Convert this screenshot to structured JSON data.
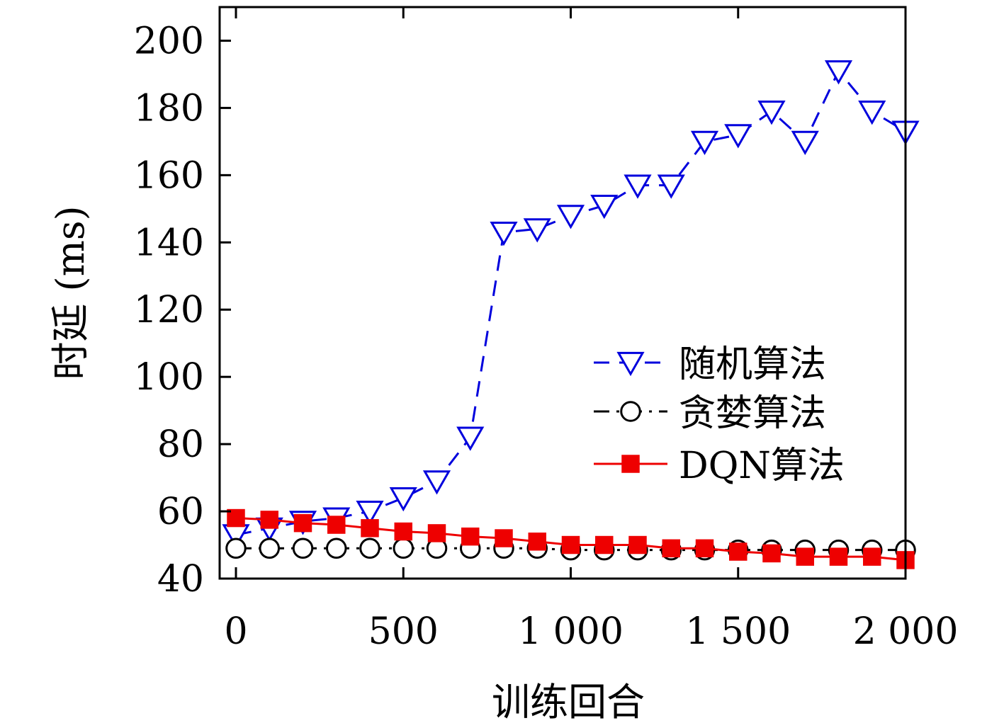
{
  "chart_data": {
    "type": "line",
    "xlabel": "训练回合",
    "ylabel": "时延 (ms)",
    "xlim": [
      -100,
      2000
    ],
    "ylim": [
      40,
      210
    ],
    "xticks": [
      0,
      500,
      1000,
      1500,
      2000
    ],
    "xtick_labels": [
      "0",
      "500",
      "1 000",
      "1 500",
      "2 000"
    ],
    "yticks": [
      40,
      60,
      80,
      100,
      120,
      140,
      160,
      180,
      200
    ],
    "ytick_labels": [
      "40",
      "60",
      "80",
      "100",
      "120",
      "140",
      "160",
      "180",
      "200"
    ],
    "grid": false,
    "legend_position": "right",
    "x": [
      0,
      100,
      200,
      300,
      400,
      500,
      600,
      700,
      800,
      900,
      1000,
      1100,
      1200,
      1300,
      1400,
      1500,
      1600,
      1700,
      1800,
      1900,
      2000
    ],
    "series": [
      {
        "name": "随机算法",
        "color": "#0000dd",
        "line_style": "dashed",
        "marker": "triangle-down-open",
        "values": [
          53,
          55,
          57,
          58,
          60,
          64,
          69,
          82,
          143,
          144,
          148,
          151,
          157,
          157,
          170,
          172,
          179,
          170,
          191,
          179,
          173
        ]
      },
      {
        "name": "贪婪算法",
        "color": "#000000",
        "line_style": "dashdot",
        "marker": "circle-open",
        "values": [
          49,
          49,
          49,
          49,
          49,
          49,
          49,
          49,
          49,
          49,
          48.5,
          48.5,
          48.5,
          48.5,
          48.5,
          48.5,
          48.5,
          48.5,
          48.5,
          48.5,
          48.5
        ]
      },
      {
        "name": "DQN算法",
        "color": "#ee0000",
        "line_style": "solid",
        "marker": "square-filled",
        "values": [
          58,
          57.5,
          56.5,
          56,
          55,
          54,
          53.5,
          52.5,
          52,
          51,
          50,
          50,
          50,
          49,
          49,
          48,
          47.5,
          46.5,
          46.5,
          46.5,
          45.5
        ]
      }
    ]
  }
}
